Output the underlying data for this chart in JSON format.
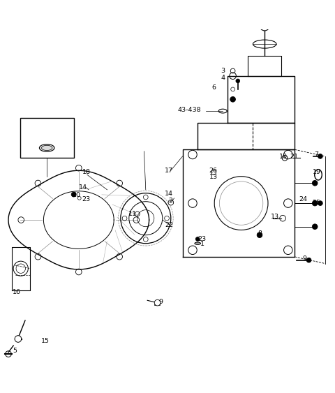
{
  "bg_color": "#ffffff",
  "line_color": "#000000",
  "gray_color": "#888888",
  "light_gray": "#cccccc",
  "dark_gray": "#555555",
  "title": "",
  "fig_width": 4.8,
  "fig_height": 5.63,
  "dpi": 100
}
